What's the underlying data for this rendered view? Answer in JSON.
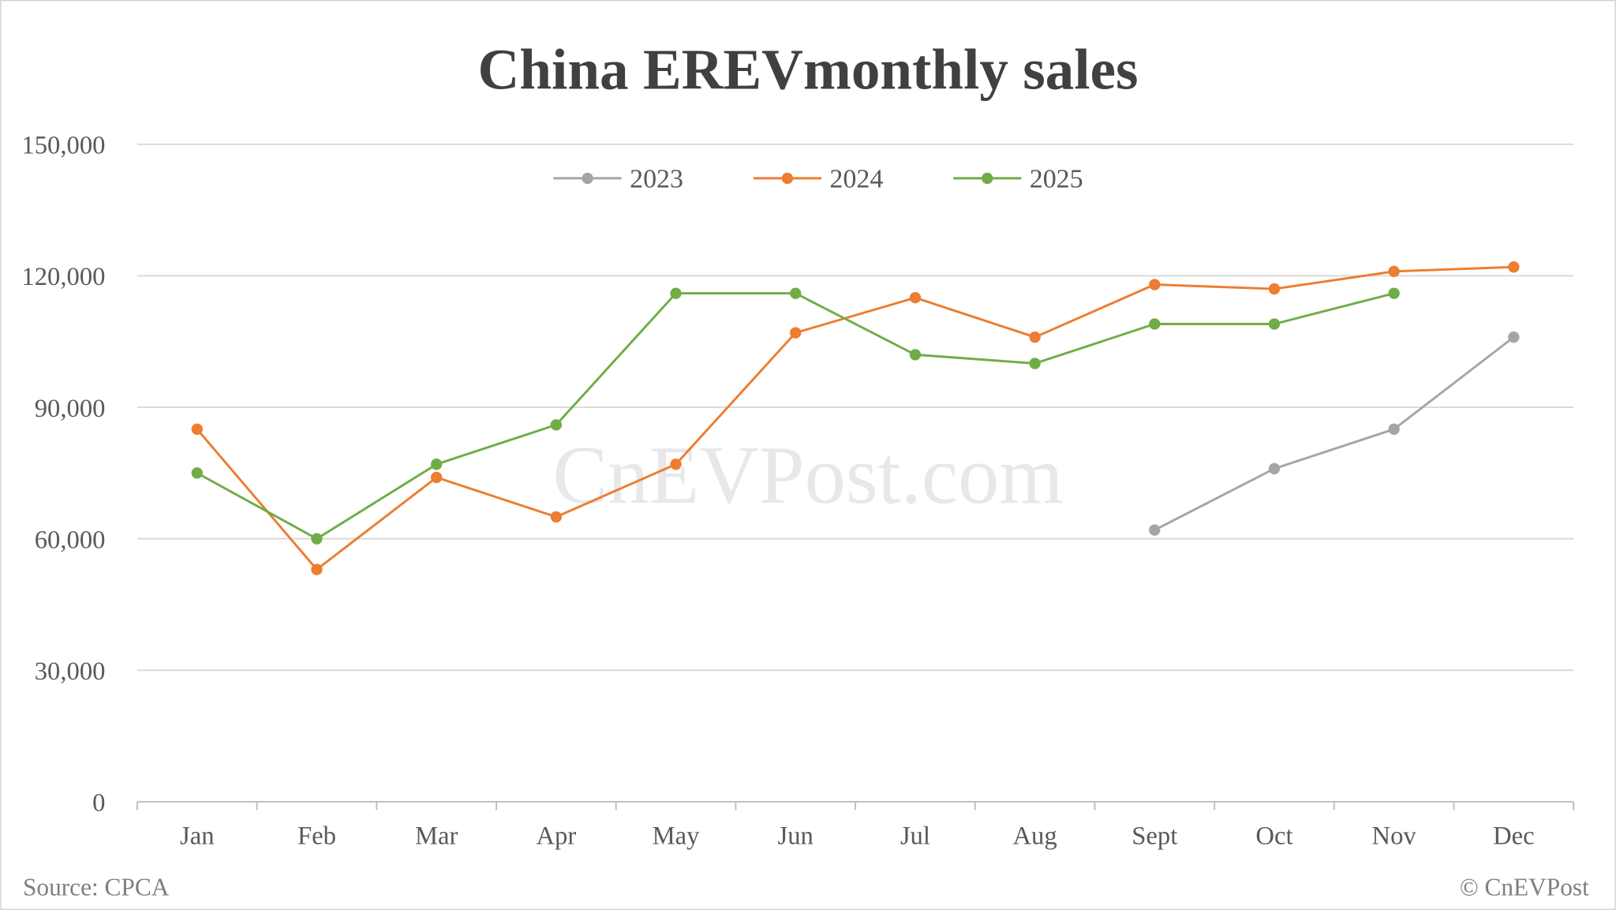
{
  "chart_data": {
    "type": "line",
    "title": "China EREVmonthly sales",
    "categories": [
      "Jan",
      "Feb",
      "Mar",
      "Apr",
      "May",
      "Jun",
      "Jul",
      "Aug",
      "Sept",
      "Oct",
      "Nov",
      "Dec"
    ],
    "ylim": [
      0,
      150000
    ],
    "yticks": [
      0,
      30000,
      60000,
      90000,
      120000,
      150000
    ],
    "ytick_labels": [
      "0",
      "30,000",
      "60,000",
      "90,000",
      "120,000",
      "150,000"
    ],
    "grid": true,
    "legend_position": "top",
    "series": [
      {
        "name": "2023",
        "color": "#a5a5a5",
        "values": [
          null,
          null,
          null,
          null,
          null,
          null,
          null,
          null,
          62000,
          76000,
          85000,
          106000
        ]
      },
      {
        "name": "2024",
        "color": "#ed7d31",
        "values": [
          85000,
          53000,
          74000,
          65000,
          77000,
          107000,
          115000,
          106000,
          118000,
          117000,
          121000,
          122000
        ]
      },
      {
        "name": "2025",
        "color": "#70ad47",
        "values": [
          75000,
          60000,
          77000,
          86000,
          116000,
          116000,
          102000,
          100000,
          109000,
          109000,
          116000,
          null
        ]
      }
    ]
  },
  "watermark": "CnEVPost.com",
  "source": "Source: CPCA",
  "copyright": "© CnEVPost"
}
